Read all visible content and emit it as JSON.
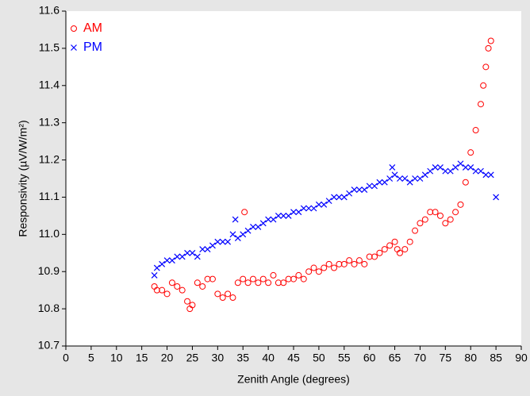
{
  "chart_data": {
    "type": "scatter",
    "xlabel": "Zenith Angle (degrees)",
    "ylabel": "Responsivity (µV/W/m²)",
    "xlim": [
      0,
      90
    ],
    "xticks": [
      0,
      5,
      10,
      15,
      20,
      25,
      30,
      35,
      40,
      45,
      50,
      55,
      60,
      65,
      70,
      75,
      80,
      85,
      90
    ],
    "ylim": [
      10.7,
      11.6
    ],
    "yticks": [
      10.7,
      10.8,
      10.9,
      {
        "value": 11,
        "label": "11.0"
      },
      11.1,
      11.2,
      11.3,
      11.4,
      11.5,
      11.6
    ],
    "legend": "upper-left",
    "series": [
      {
        "name": "AM",
        "color": "#ff0000",
        "marker": "circle",
        "x": [
          17.5,
          18,
          19,
          20,
          21,
          22,
          23,
          24,
          24.5,
          25,
          26,
          27,
          28,
          29,
          30,
          31,
          32,
          33,
          34,
          35,
          35.3,
          36,
          37,
          38,
          39,
          40,
          41,
          42,
          43,
          44,
          45,
          46,
          47,
          48,
          49,
          50,
          51,
          52,
          53,
          54,
          55,
          56,
          57,
          58,
          59,
          60,
          61,
          62,
          63,
          64,
          65,
          65.5,
          66,
          67,
          68,
          69,
          70,
          71,
          72,
          73,
          74,
          75,
          76,
          77,
          78,
          79,
          80,
          81,
          82,
          82.5,
          83,
          83.5,
          84
        ],
        "values": [
          10.86,
          10.85,
          10.85,
          10.84,
          10.87,
          10.86,
          10.85,
          10.82,
          10.8,
          10.81,
          10.87,
          10.86,
          10.88,
          10.88,
          10.84,
          10.83,
          10.84,
          10.83,
          10.87,
          10.88,
          11.06,
          10.87,
          10.88,
          10.87,
          10.88,
          10.87,
          10.89,
          10.87,
          10.87,
          10.88,
          10.88,
          10.89,
          10.88,
          10.9,
          10.91,
          10.9,
          10.91,
          10.92,
          10.91,
          10.92,
          10.92,
          10.93,
          10.92,
          10.93,
          10.92,
          10.94,
          10.94,
          10.95,
          10.96,
          10.97,
          10.98,
          10.96,
          10.95,
          10.96,
          10.98,
          11.01,
          11.03,
          11.04,
          11.06,
          11.06,
          11.05,
          11.03,
          11.04,
          11.06,
          11.08,
          11.14,
          11.22,
          11.28,
          11.35,
          11.4,
          11.45,
          11.5,
          11.52
        ]
      },
      {
        "name": "PM",
        "color": "#0000ff",
        "marker": "x",
        "x": [
          17.5,
          18,
          19,
          20,
          21,
          22,
          23,
          24,
          25,
          26,
          27,
          28,
          29,
          30,
          31,
          32,
          33,
          33.5,
          34,
          35,
          36,
          37,
          38,
          39,
          40,
          41,
          42,
          43,
          44,
          45,
          46,
          47,
          48,
          49,
          50,
          51,
          52,
          53,
          54,
          55,
          56,
          57,
          58,
          59,
          60,
          61,
          62,
          63,
          64,
          64.5,
          65,
          66,
          67,
          68,
          69,
          70,
          71,
          72,
          73,
          74,
          75,
          76,
          77,
          78,
          79,
          80,
          81,
          82,
          83,
          84,
          85
        ],
        "values": [
          10.89,
          10.91,
          10.92,
          10.93,
          10.93,
          10.94,
          10.94,
          10.95,
          10.95,
          10.94,
          10.96,
          10.96,
          10.97,
          10.98,
          10.98,
          10.98,
          11.0,
          11.04,
          10.99,
          11.0,
          11.01,
          11.02,
          11.02,
          11.03,
          11.04,
          11.04,
          11.05,
          11.05,
          11.05,
          11.06,
          11.06,
          11.07,
          11.07,
          11.07,
          11.08,
          11.08,
          11.09,
          11.1,
          11.1,
          11.1,
          11.11,
          11.12,
          11.12,
          11.12,
          11.13,
          11.13,
          11.14,
          11.14,
          11.15,
          11.18,
          11.16,
          11.15,
          11.15,
          11.14,
          11.15,
          11.15,
          11.16,
          11.17,
          11.18,
          11.18,
          11.17,
          11.17,
          11.18,
          11.19,
          11.18,
          11.18,
          11.17,
          11.17,
          11.16,
          11.16,
          11.1
        ]
      }
    ]
  }
}
